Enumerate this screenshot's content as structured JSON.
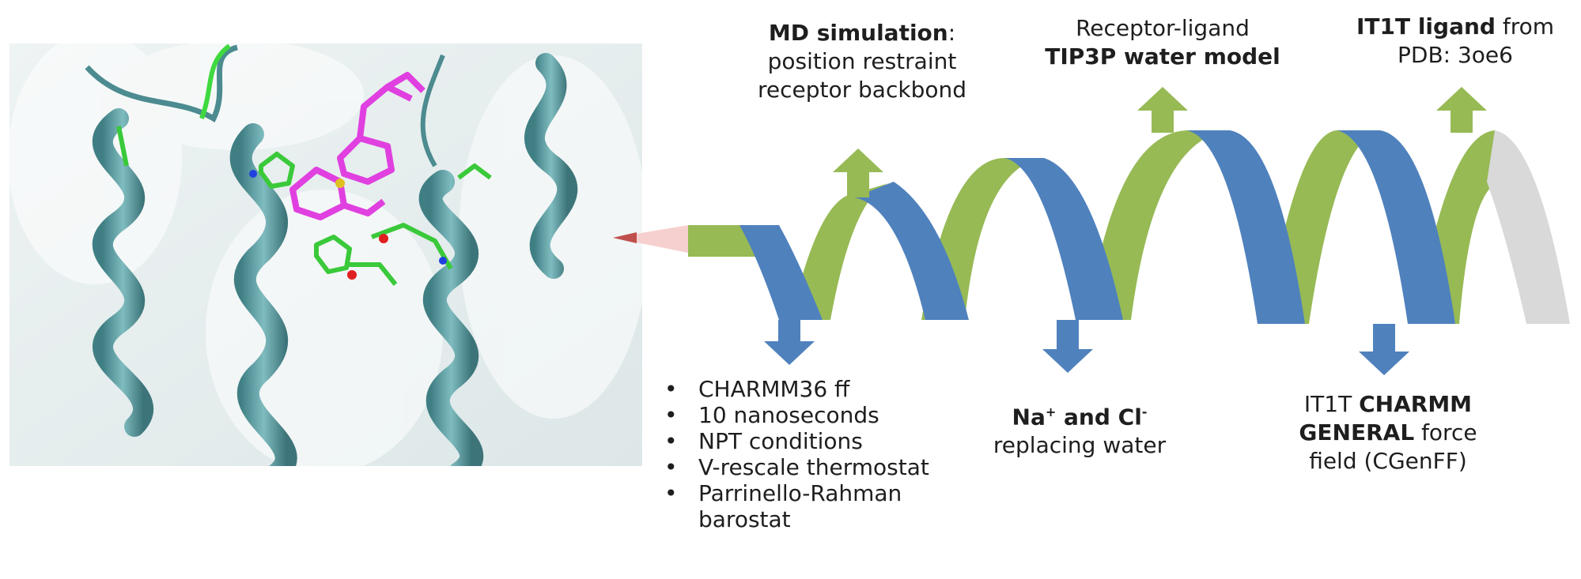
{
  "figure": {
    "image_alt": "Receptor-ligand complex: teal alpha-helices with magenta ligand and green binding-site residues",
    "colors": {
      "green": "#97ba55",
      "blue": "#4f81bd",
      "grey": "#d9d9d9",
      "pointer": "#c0504d",
      "helix_teal": "#5b9aa0",
      "ligand": "#e040e0"
    }
  },
  "steps": {
    "md_simulation": {
      "bold": "MD simulation",
      "rest": ":",
      "line2": "position restraint",
      "line3": "receptor backbond"
    },
    "receptor_ligand": {
      "line1": "Receptor-ligand",
      "bold": "TIP3P water model"
    },
    "it1t_ligand": {
      "bold": "IT1T ligand",
      "rest": " from",
      "line2": "PDB: 3oe6"
    },
    "ions": {
      "na": "Na",
      "sup_plus": "+",
      "and": " and Cl",
      "sup_minus": "-",
      "line2": "replacing water"
    },
    "cgenff": {
      "pre": "IT1T ",
      "bold1": "CHARMM",
      "bold2": "GENERAL",
      "rest2": " force",
      "line3": "field (CGenFF)"
    }
  },
  "md_params": [
    "CHARMM36 ff",
    "10 nanoseconds",
    "NPT conditions",
    "V-rescale thermostat",
    "Parrinello-Rahman",
    "barostat"
  ]
}
